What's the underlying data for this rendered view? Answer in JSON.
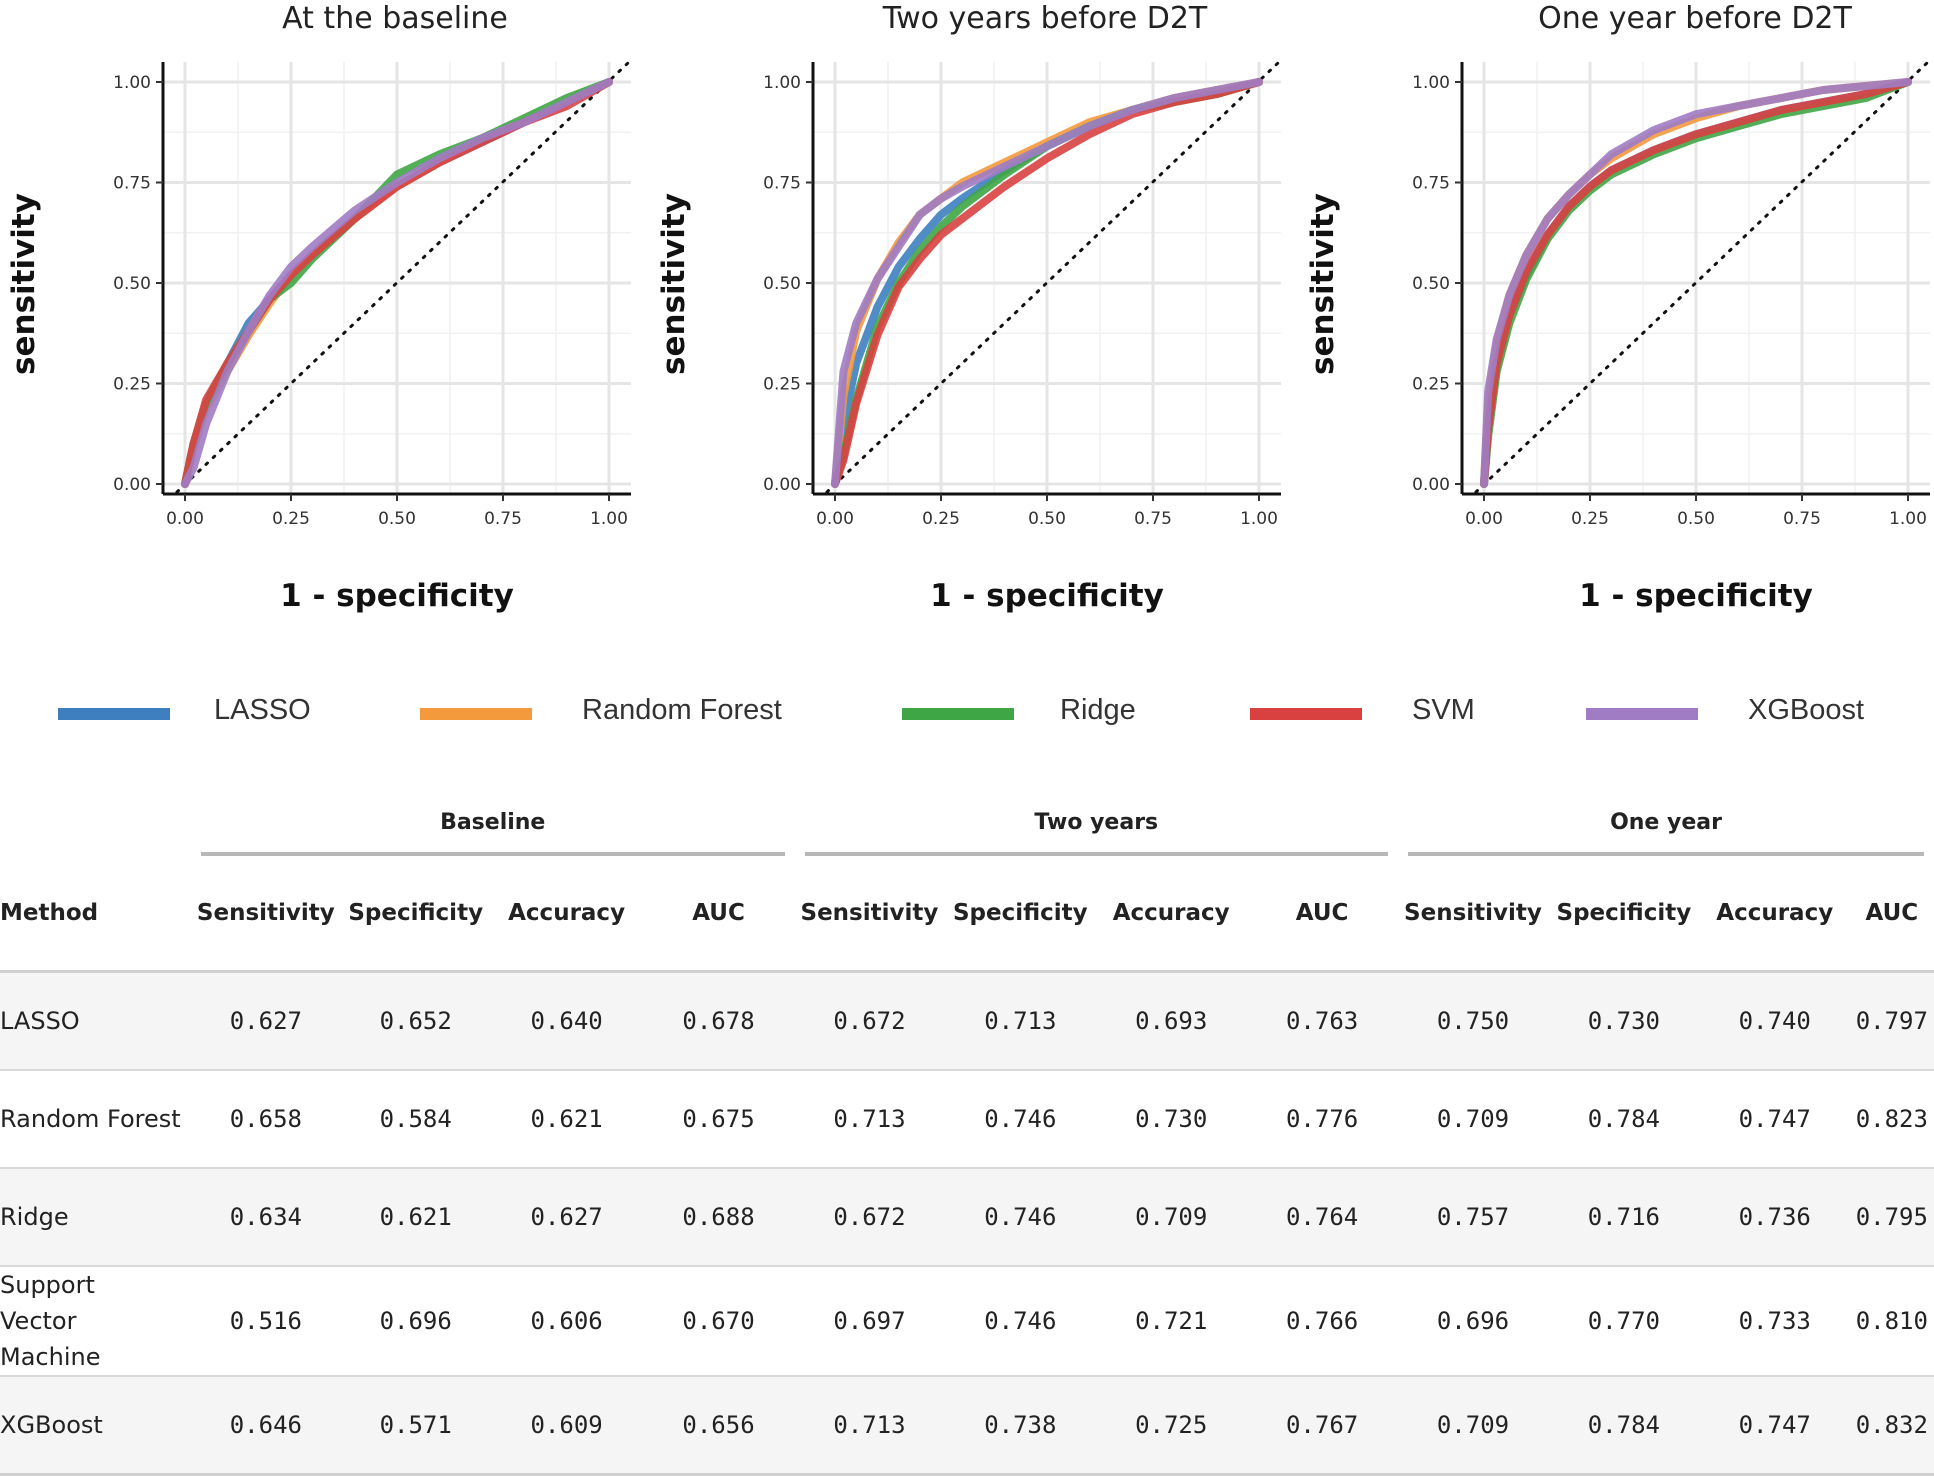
{
  "legend": {
    "items": [
      {
        "label": "LASSO",
        "color": "#3d7fbf"
      },
      {
        "label": "Random Forest",
        "color": "#f39a3d"
      },
      {
        "label": "Ridge",
        "color": "#3fa645"
      },
      {
        "label": "SVM",
        "color": "#d94141"
      },
      {
        "label": "XGBoost",
        "color": "#a07cc4"
      }
    ]
  },
  "chart_data": [
    {
      "type": "line",
      "title": "At the baseline",
      "xlabel": "1 - specificity",
      "ylabel": "sensitivity",
      "xlim": [
        0,
        1
      ],
      "ylim": [
        0,
        1
      ],
      "x_ticks": [
        "0.00",
        "0.25",
        "0.50",
        "0.75",
        "1.00"
      ],
      "y_ticks": [
        "0.00",
        "0.25",
        "0.50",
        "0.75",
        "1.00"
      ],
      "grid": true,
      "reference_line": "diagonal",
      "series": [
        {
          "name": "LASSO",
          "x": [
            0,
            0.02,
            0.05,
            0.1,
            0.15,
            0.2,
            0.25,
            0.3,
            0.4,
            0.5,
            0.6,
            0.7,
            0.8,
            0.9,
            1
          ],
          "y": [
            0,
            0.1,
            0.2,
            0.3,
            0.4,
            0.46,
            0.52,
            0.57,
            0.66,
            0.74,
            0.8,
            0.85,
            0.9,
            0.95,
            1
          ]
        },
        {
          "name": "Random Forest",
          "x": [
            0,
            0.02,
            0.05,
            0.1,
            0.15,
            0.2,
            0.25,
            0.3,
            0.4,
            0.5,
            0.6,
            0.7,
            0.8,
            0.9,
            1
          ],
          "y": [
            0,
            0.09,
            0.19,
            0.28,
            0.37,
            0.45,
            0.52,
            0.57,
            0.66,
            0.74,
            0.8,
            0.86,
            0.9,
            0.95,
            1
          ]
        },
        {
          "name": "Ridge",
          "x": [
            0,
            0.02,
            0.05,
            0.1,
            0.15,
            0.2,
            0.25,
            0.3,
            0.4,
            0.5,
            0.6,
            0.7,
            0.8,
            0.9,
            1
          ],
          "y": [
            0,
            0.1,
            0.2,
            0.3,
            0.38,
            0.46,
            0.5,
            0.56,
            0.66,
            0.77,
            0.82,
            0.86,
            0.91,
            0.96,
            1
          ]
        },
        {
          "name": "SVM",
          "x": [
            0,
            0.02,
            0.05,
            0.1,
            0.15,
            0.2,
            0.25,
            0.3,
            0.4,
            0.5,
            0.6,
            0.7,
            0.8,
            0.9,
            1
          ],
          "y": [
            0,
            0.1,
            0.21,
            0.3,
            0.38,
            0.46,
            0.52,
            0.57,
            0.66,
            0.74,
            0.8,
            0.85,
            0.9,
            0.94,
            1
          ]
        },
        {
          "name": "XGBoost",
          "x": [
            0,
            0.02,
            0.05,
            0.1,
            0.15,
            0.2,
            0.25,
            0.3,
            0.4,
            0.5,
            0.6,
            0.7,
            0.8,
            0.9,
            1
          ],
          "y": [
            0,
            0.04,
            0.15,
            0.28,
            0.38,
            0.47,
            0.54,
            0.59,
            0.68,
            0.75,
            0.81,
            0.86,
            0.9,
            0.95,
            1
          ]
        }
      ]
    },
    {
      "type": "line",
      "title": "Two years before D2T",
      "xlabel": "1 - specificity",
      "ylabel": "sensitivity",
      "xlim": [
        0,
        1
      ],
      "ylim": [
        0,
        1
      ],
      "x_ticks": [
        "0.00",
        "0.25",
        "0.50",
        "0.75",
        "1.00"
      ],
      "y_ticks": [
        "0.00",
        "0.25",
        "0.50",
        "0.75",
        "1.00"
      ],
      "grid": true,
      "reference_line": "diagonal",
      "series": [
        {
          "name": "LASSO",
          "x": [
            0,
            0.02,
            0.05,
            0.1,
            0.15,
            0.2,
            0.25,
            0.3,
            0.4,
            0.5,
            0.6,
            0.7,
            0.8,
            0.9,
            1
          ],
          "y": [
            0,
            0.15,
            0.3,
            0.44,
            0.54,
            0.61,
            0.67,
            0.71,
            0.78,
            0.84,
            0.89,
            0.93,
            0.96,
            0.98,
            1
          ]
        },
        {
          "name": "Random Forest",
          "x": [
            0,
            0.02,
            0.05,
            0.1,
            0.15,
            0.2,
            0.25,
            0.3,
            0.4,
            0.5,
            0.6,
            0.7,
            0.8,
            0.9,
            1
          ],
          "y": [
            0,
            0.22,
            0.38,
            0.51,
            0.6,
            0.67,
            0.71,
            0.75,
            0.8,
            0.85,
            0.9,
            0.93,
            0.96,
            0.98,
            1
          ]
        },
        {
          "name": "Ridge",
          "x": [
            0,
            0.02,
            0.05,
            0.1,
            0.15,
            0.2,
            0.25,
            0.3,
            0.4,
            0.5,
            0.6,
            0.7,
            0.8,
            0.9,
            1
          ],
          "y": [
            0,
            0.07,
            0.21,
            0.39,
            0.5,
            0.58,
            0.64,
            0.69,
            0.77,
            0.84,
            0.89,
            0.93,
            0.95,
            0.97,
            1
          ]
        },
        {
          "name": "SVM",
          "x": [
            0,
            0.02,
            0.05,
            0.1,
            0.15,
            0.2,
            0.25,
            0.3,
            0.4,
            0.5,
            0.6,
            0.7,
            0.8,
            0.9,
            1
          ],
          "y": [
            0,
            0.06,
            0.2,
            0.37,
            0.49,
            0.56,
            0.62,
            0.66,
            0.74,
            0.81,
            0.87,
            0.92,
            0.95,
            0.97,
            1
          ]
        },
        {
          "name": "XGBoost",
          "x": [
            0,
            0.02,
            0.05,
            0.1,
            0.15,
            0.2,
            0.25,
            0.3,
            0.4,
            0.5,
            0.6,
            0.7,
            0.8,
            0.9,
            1
          ],
          "y": [
            0,
            0.28,
            0.4,
            0.51,
            0.59,
            0.67,
            0.71,
            0.74,
            0.79,
            0.84,
            0.89,
            0.93,
            0.96,
            0.98,
            1
          ]
        }
      ]
    },
    {
      "type": "line",
      "title": "One year before D2T",
      "xlabel": "1 - specificity",
      "ylabel": "sensitivity",
      "xlim": [
        0,
        1
      ],
      "ylim": [
        0,
        1
      ],
      "x_ticks": [
        "0.00",
        "0.25",
        "0.50",
        "0.75",
        "1.00"
      ],
      "y_ticks": [
        "0.00",
        "0.25",
        "0.50",
        "0.75",
        "1.00"
      ],
      "grid": true,
      "reference_line": "diagonal",
      "series": [
        {
          "name": "LASSO",
          "x": [
            0,
            0.01,
            0.03,
            0.06,
            0.1,
            0.15,
            0.2,
            0.25,
            0.3,
            0.4,
            0.5,
            0.6,
            0.7,
            0.8,
            0.9,
            1
          ],
          "y": [
            0,
            0.15,
            0.3,
            0.42,
            0.52,
            0.62,
            0.69,
            0.74,
            0.78,
            0.83,
            0.87,
            0.9,
            0.93,
            0.95,
            0.97,
            1
          ]
        },
        {
          "name": "Random Forest",
          "x": [
            0,
            0.01,
            0.03,
            0.06,
            0.1,
            0.15,
            0.2,
            0.25,
            0.3,
            0.4,
            0.5,
            0.6,
            0.7,
            0.8,
            0.9,
            1
          ],
          "y": [
            0,
            0.2,
            0.35,
            0.47,
            0.57,
            0.66,
            0.72,
            0.77,
            0.81,
            0.87,
            0.91,
            0.94,
            0.96,
            0.98,
            0.99,
            1
          ]
        },
        {
          "name": "Ridge",
          "x": [
            0,
            0.01,
            0.03,
            0.06,
            0.1,
            0.15,
            0.2,
            0.25,
            0.3,
            0.4,
            0.5,
            0.6,
            0.7,
            0.8,
            0.9,
            1
          ],
          "y": [
            0,
            0.12,
            0.28,
            0.4,
            0.51,
            0.61,
            0.68,
            0.73,
            0.77,
            0.82,
            0.86,
            0.89,
            0.92,
            0.94,
            0.96,
            1
          ]
        },
        {
          "name": "SVM",
          "x": [
            0,
            0.01,
            0.03,
            0.06,
            0.1,
            0.15,
            0.2,
            0.25,
            0.3,
            0.4,
            0.5,
            0.6,
            0.7,
            0.8,
            0.9,
            1
          ],
          "y": [
            0,
            0.14,
            0.3,
            0.42,
            0.53,
            0.62,
            0.69,
            0.74,
            0.78,
            0.83,
            0.87,
            0.9,
            0.93,
            0.95,
            0.97,
            1
          ]
        },
        {
          "name": "XGBoost",
          "x": [
            0,
            0.01,
            0.03,
            0.06,
            0.1,
            0.15,
            0.2,
            0.25,
            0.3,
            0.4,
            0.5,
            0.6,
            0.7,
            0.8,
            0.9,
            1
          ],
          "y": [
            0,
            0.23,
            0.36,
            0.47,
            0.57,
            0.66,
            0.72,
            0.77,
            0.82,
            0.88,
            0.92,
            0.94,
            0.96,
            0.98,
            0.99,
            1
          ]
        }
      ]
    }
  ],
  "table": {
    "method_header": "Method",
    "groups": [
      "Baseline",
      "Two years",
      "One year"
    ],
    "columns": [
      "Sensitivity",
      "Specificity",
      "Accuracy",
      "AUC"
    ],
    "rows": [
      {
        "method": "LASSO",
        "values": [
          "0.627",
          "0.652",
          "0.640",
          "0.678",
          "0.672",
          "0.713",
          "0.693",
          "0.763",
          "0.750",
          "0.730",
          "0.740",
          "0.797"
        ]
      },
      {
        "method": "Random Forest",
        "values": [
          "0.658",
          "0.584",
          "0.621",
          "0.675",
          "0.713",
          "0.746",
          "0.730",
          "0.776",
          "0.709",
          "0.784",
          "0.747",
          "0.823"
        ]
      },
      {
        "method": "Ridge",
        "values": [
          "0.634",
          "0.621",
          "0.627",
          "0.688",
          "0.672",
          "0.746",
          "0.709",
          "0.764",
          "0.757",
          "0.716",
          "0.736",
          "0.795"
        ]
      },
      {
        "method": "Support Vector Machine",
        "values": [
          "0.516",
          "0.696",
          "0.606",
          "0.670",
          "0.697",
          "0.746",
          "0.721",
          "0.766",
          "0.696",
          "0.770",
          "0.733",
          "0.810"
        ]
      },
      {
        "method": "XGBoost",
        "values": [
          "0.646",
          "0.571",
          "0.609",
          "0.656",
          "0.713",
          "0.738",
          "0.725",
          "0.767",
          "0.709",
          "0.784",
          "0.747",
          "0.832"
        ]
      }
    ]
  }
}
